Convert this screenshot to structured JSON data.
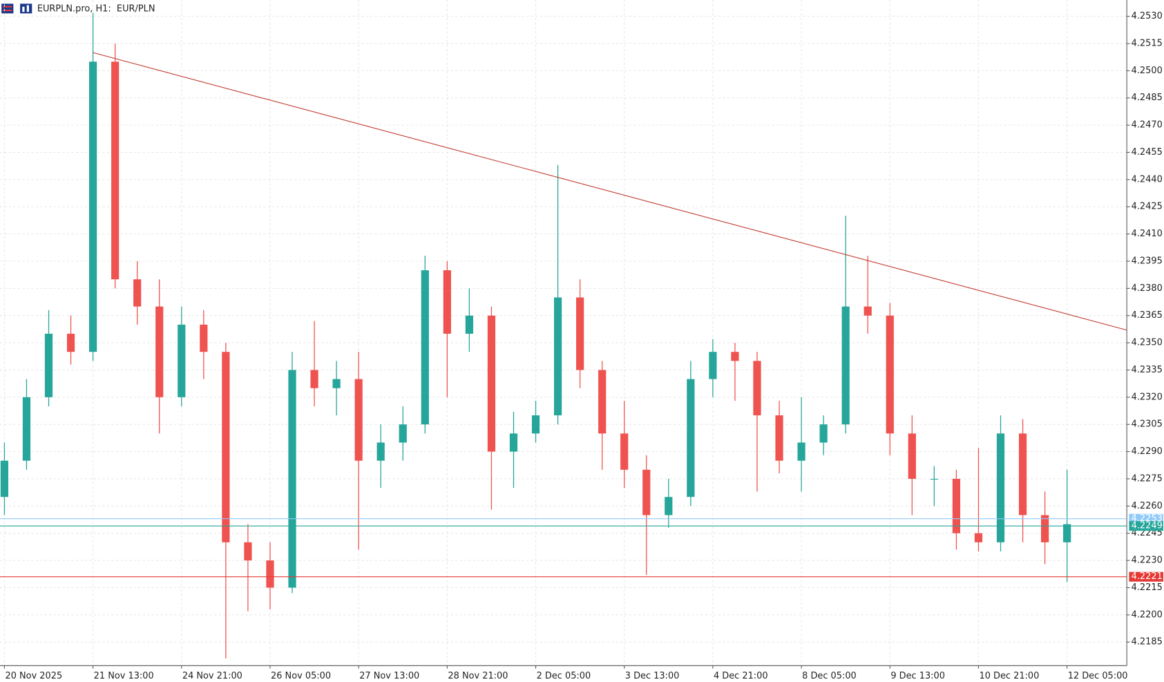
{
  "chart_data": {
    "type": "candlestick",
    "title": "EURPLN.pro, H1:  EUR/PLN",
    "x": [
      0,
      1,
      2,
      3,
      4,
      5,
      6,
      7,
      8,
      9,
      10,
      11,
      12,
      13,
      14,
      15,
      16,
      17,
      18,
      19,
      20,
      21,
      22,
      23,
      24,
      25,
      26,
      27,
      28,
      29,
      30,
      31,
      32,
      33,
      34,
      35,
      36,
      37,
      38,
      39,
      40,
      41,
      42,
      43,
      44,
      45,
      46,
      47,
      48
    ],
    "open": [
      4.2265,
      4.2285,
      4.232,
      4.2355,
      4.2345,
      4.2505,
      4.2385,
      4.237,
      4.232,
      4.236,
      4.2345,
      4.224,
      4.223,
      4.2215,
      4.2335,
      4.2325,
      4.233,
      4.2285,
      4.2295,
      4.2305,
      4.239,
      4.2355,
      4.2365,
      4.229,
      4.23,
      4.231,
      4.2375,
      4.2335,
      4.23,
      4.228,
      4.2255,
      4.2265,
      4.233,
      4.2345,
      4.234,
      4.231,
      4.2285,
      4.2295,
      4.2305,
      4.237,
      4.2365,
      4.23,
      4.2275,
      4.2275,
      4.2245,
      4.224,
      4.23,
      4.2255,
      4.224
    ],
    "high": [
      4.2295,
      4.233,
      4.2368,
      4.2365,
      4.2532,
      4.2515,
      4.2395,
      4.2385,
      4.237,
      4.2368,
      4.235,
      4.225,
      4.224,
      4.2345,
      4.2362,
      4.234,
      4.2345,
      4.2305,
      4.2315,
      4.2398,
      4.2395,
      4.238,
      4.237,
      4.2312,
      4.2318,
      4.2448,
      4.2385,
      4.234,
      4.2318,
      4.2288,
      4.2275,
      4.234,
      4.2352,
      4.235,
      4.2345,
      4.2318,
      4.232,
      4.231,
      4.242,
      4.2398,
      4.2372,
      4.231,
      4.2282,
      4.228,
      4.2292,
      4.231,
      4.2308,
      4.2268,
      4.228
    ],
    "low": [
      4.2255,
      4.228,
      4.2315,
      4.2338,
      4.234,
      4.238,
      4.236,
      4.23,
      4.2315,
      4.233,
      4.2176,
      4.2202,
      4.2203,
      4.2212,
      4.2315,
      4.231,
      4.2236,
      4.227,
      4.2285,
      4.23,
      4.232,
      4.2345,
      4.2258,
      4.227,
      4.2295,
      4.2305,
      4.2325,
      4.228,
      4.227,
      4.2222,
      4.2248,
      4.226,
      4.232,
      4.2318,
      4.2268,
      4.2278,
      4.2268,
      4.2288,
      4.23,
      4.2355,
      4.2288,
      4.2255,
      4.226,
      4.2236,
      4.2235,
      4.2235,
      4.224,
      4.2228,
      4.2218
    ],
    "close": [
      4.2285,
      4.232,
      4.2355,
      4.2345,
      4.2505,
      4.2385,
      4.237,
      4.232,
      4.236,
      4.2345,
      4.224,
      4.223,
      4.2215,
      4.2335,
      4.2325,
      4.233,
      4.2285,
      4.2295,
      4.2305,
      4.239,
      4.2355,
      4.2365,
      4.229,
      4.23,
      4.231,
      4.2375,
      4.2335,
      4.23,
      4.228,
      4.2255,
      4.2265,
      4.233,
      4.2345,
      4.234,
      4.231,
      4.2285,
      4.2295,
      4.2305,
      4.237,
      4.2365,
      4.23,
      4.2275,
      4.2275,
      4.2245,
      4.224,
      4.23,
      4.2255,
      4.224,
      4.225
    ],
    "up_color": "#26a69a",
    "down_color": "#ef5350",
    "xlim": [
      -0.2,
      50.7
    ],
    "ylim": [
      4.2172,
      4.2539
    ],
    "xticks": [
      {
        "value": 0,
        "label": "20 Nov 2025"
      },
      {
        "value": 4,
        "label": "21 Nov 13:00"
      },
      {
        "value": 8,
        "label": "24 Nov 21:00"
      },
      {
        "value": 12,
        "label": "26 Nov 05:00"
      },
      {
        "value": 16,
        "label": "27 Nov 13:00"
      },
      {
        "value": 20,
        "label": "28 Nov 21:00"
      },
      {
        "value": 24,
        "label": "2 Dec 05:00"
      },
      {
        "value": 28,
        "label": "3 Dec 13:00"
      },
      {
        "value": 32,
        "label": "4 Dec 21:00"
      },
      {
        "value": 36,
        "label": "8 Dec 05:00"
      },
      {
        "value": 40,
        "label": "9 Dec 13:00"
      },
      {
        "value": 44,
        "label": "10 Dec 21:00"
      },
      {
        "value": 48,
        "label": "12 Dec 05:00"
      }
    ],
    "yticks": [
      {
        "value": 4.2185,
        "label": "4.2185"
      },
      {
        "value": 4.22,
        "label": "4.2200"
      },
      {
        "value": 4.2215,
        "label": "4.2215"
      },
      {
        "value": 4.223,
        "label": "4.2230"
      },
      {
        "value": 4.2245,
        "label": "4.2245"
      },
      {
        "value": 4.226,
        "label": "4.2260"
      },
      {
        "value": 4.2275,
        "label": "4.2275"
      },
      {
        "value": 4.229,
        "label": "4.2290"
      },
      {
        "value": 4.2305,
        "label": "4.2305"
      },
      {
        "value": 4.232,
        "label": "4.2320"
      },
      {
        "value": 4.2335,
        "label": "4.2335"
      },
      {
        "value": 4.235,
        "label": "4.2350"
      },
      {
        "value": 4.2365,
        "label": "4.2365"
      },
      {
        "value": 4.238,
        "label": "4.2380"
      },
      {
        "value": 4.2395,
        "label": "4.2395"
      },
      {
        "value": 4.241,
        "label": "4.2410"
      },
      {
        "value": 4.2425,
        "label": "4.2425"
      },
      {
        "value": 4.244,
        "label": "4.2440"
      },
      {
        "value": 4.2455,
        "label": "4.2455"
      },
      {
        "value": 4.247,
        "label": "4.2470"
      },
      {
        "value": 4.2485,
        "label": "4.2485"
      },
      {
        "value": 4.25,
        "label": "4.2500"
      },
      {
        "value": 4.2515,
        "label": "4.2515"
      },
      {
        "value": 4.253,
        "label": "4.2530"
      }
    ],
    "grid": true,
    "trendline": {
      "x": [
        4,
        50.7
      ],
      "values": [
        4.251,
        4.2357
      ],
      "color": "#c0392b"
    },
    "price_lines": [
      {
        "value": 4.2253,
        "label": "4.2253",
        "color": "#90caf9"
      },
      {
        "value": 4.2249,
        "label": "4.2249",
        "color": "#26a69a"
      },
      {
        "value": 4.2221,
        "label": "4.2221",
        "color": "#e53935"
      }
    ]
  }
}
